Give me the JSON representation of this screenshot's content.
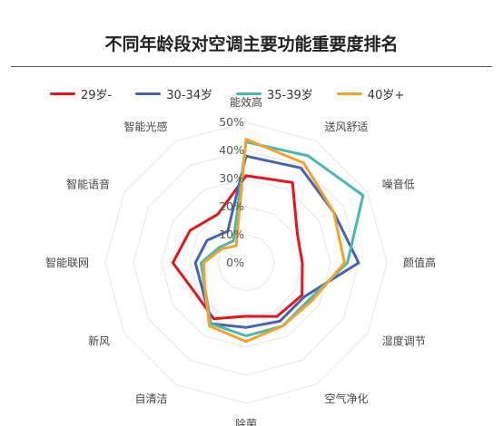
{
  "chart_data": {
    "type": "radar",
    "title": "不同年龄段对空调主要功能重要度排名",
    "categories": [
      "能效高",
      "送风舒适",
      "噪音低",
      "颜值高",
      "湿度调节",
      "空气净化",
      "除菌",
      "自清洁",
      "新风",
      "智能联网",
      "智能语音",
      "智能光感"
    ],
    "rlim": [
      0,
      0.5
    ],
    "ticks": [
      "0%",
      "10%",
      "20%",
      "30%",
      "40%",
      "50%"
    ],
    "grid": true,
    "legend_position": "top",
    "series": [
      {
        "name": "29岁-",
        "color": "#E8141B",
        "values": [
          0.31,
          0.33,
          0.21,
          0.2,
          0.23,
          0.22,
          0.19,
          0.23,
          0.21,
          0.26,
          0.23,
          0.2
        ]
      },
      {
        "name": "30-34岁",
        "color": "#4562B5",
        "values": [
          0.38,
          0.39,
          0.36,
          0.4,
          0.24,
          0.24,
          0.23,
          0.25,
          0.18,
          0.18,
          0.16,
          0.13
        ]
      },
      {
        "name": "35-39岁",
        "color": "#4BB8AE",
        "values": [
          0.43,
          0.44,
          0.48,
          0.36,
          0.26,
          0.26,
          0.26,
          0.25,
          0.17,
          0.16,
          0.11,
          0.09
        ]
      },
      {
        "name": "40岁+",
        "color": "#F5A22D",
        "values": [
          0.44,
          0.41,
          0.36,
          0.35,
          0.27,
          0.26,
          0.28,
          0.26,
          0.17,
          0.15,
          0.1,
          0.07
        ]
      }
    ]
  }
}
